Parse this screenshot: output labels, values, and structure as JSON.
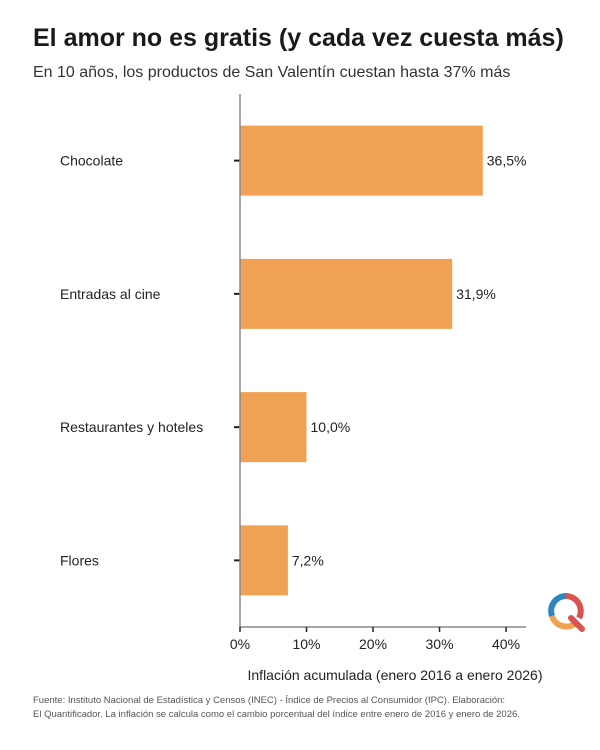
{
  "header": {
    "title": "El amor no es gratis (y cada vez cuesta más)",
    "subtitle": "En 10 años, los productos de San Valentín cuestan hasta 37% más"
  },
  "chart_data": {
    "type": "bar",
    "orientation": "horizontal",
    "categories": [
      "Chocolate",
      "Entradas al cine",
      "Restaurantes y hoteles",
      "Flores"
    ],
    "values": [
      36.5,
      31.9,
      10.0,
      7.2
    ],
    "value_labels": [
      "36,5%",
      "31,9%",
      "10,0%",
      "7,2%"
    ],
    "xlabel": "Inflación acumulada (enero 2016 a enero 2026)",
    "ylabel": "",
    "xlim": [
      0,
      43
    ],
    "xticks": [
      0,
      10,
      20,
      30,
      40
    ],
    "xtick_labels": [
      "0%",
      "10%",
      "20%",
      "30%",
      "40%"
    ],
    "bar_color": "#F0A153",
    "grid": false
  },
  "footnote": {
    "line1": "Fuente: Instituto Nacional de Estadística y Censos (INEC) - Índice de Precios al Consumidor (IPC). Elaboración:",
    "line2": "El Quantificador. La inflación se calcula como el cambio porcentual del índice entre enero de 2016 y enero de 2026."
  },
  "logo": {
    "icon": "el-quantificador-q-logo",
    "colors": [
      "#2E86C1",
      "#F0A153",
      "#D9534F"
    ]
  }
}
